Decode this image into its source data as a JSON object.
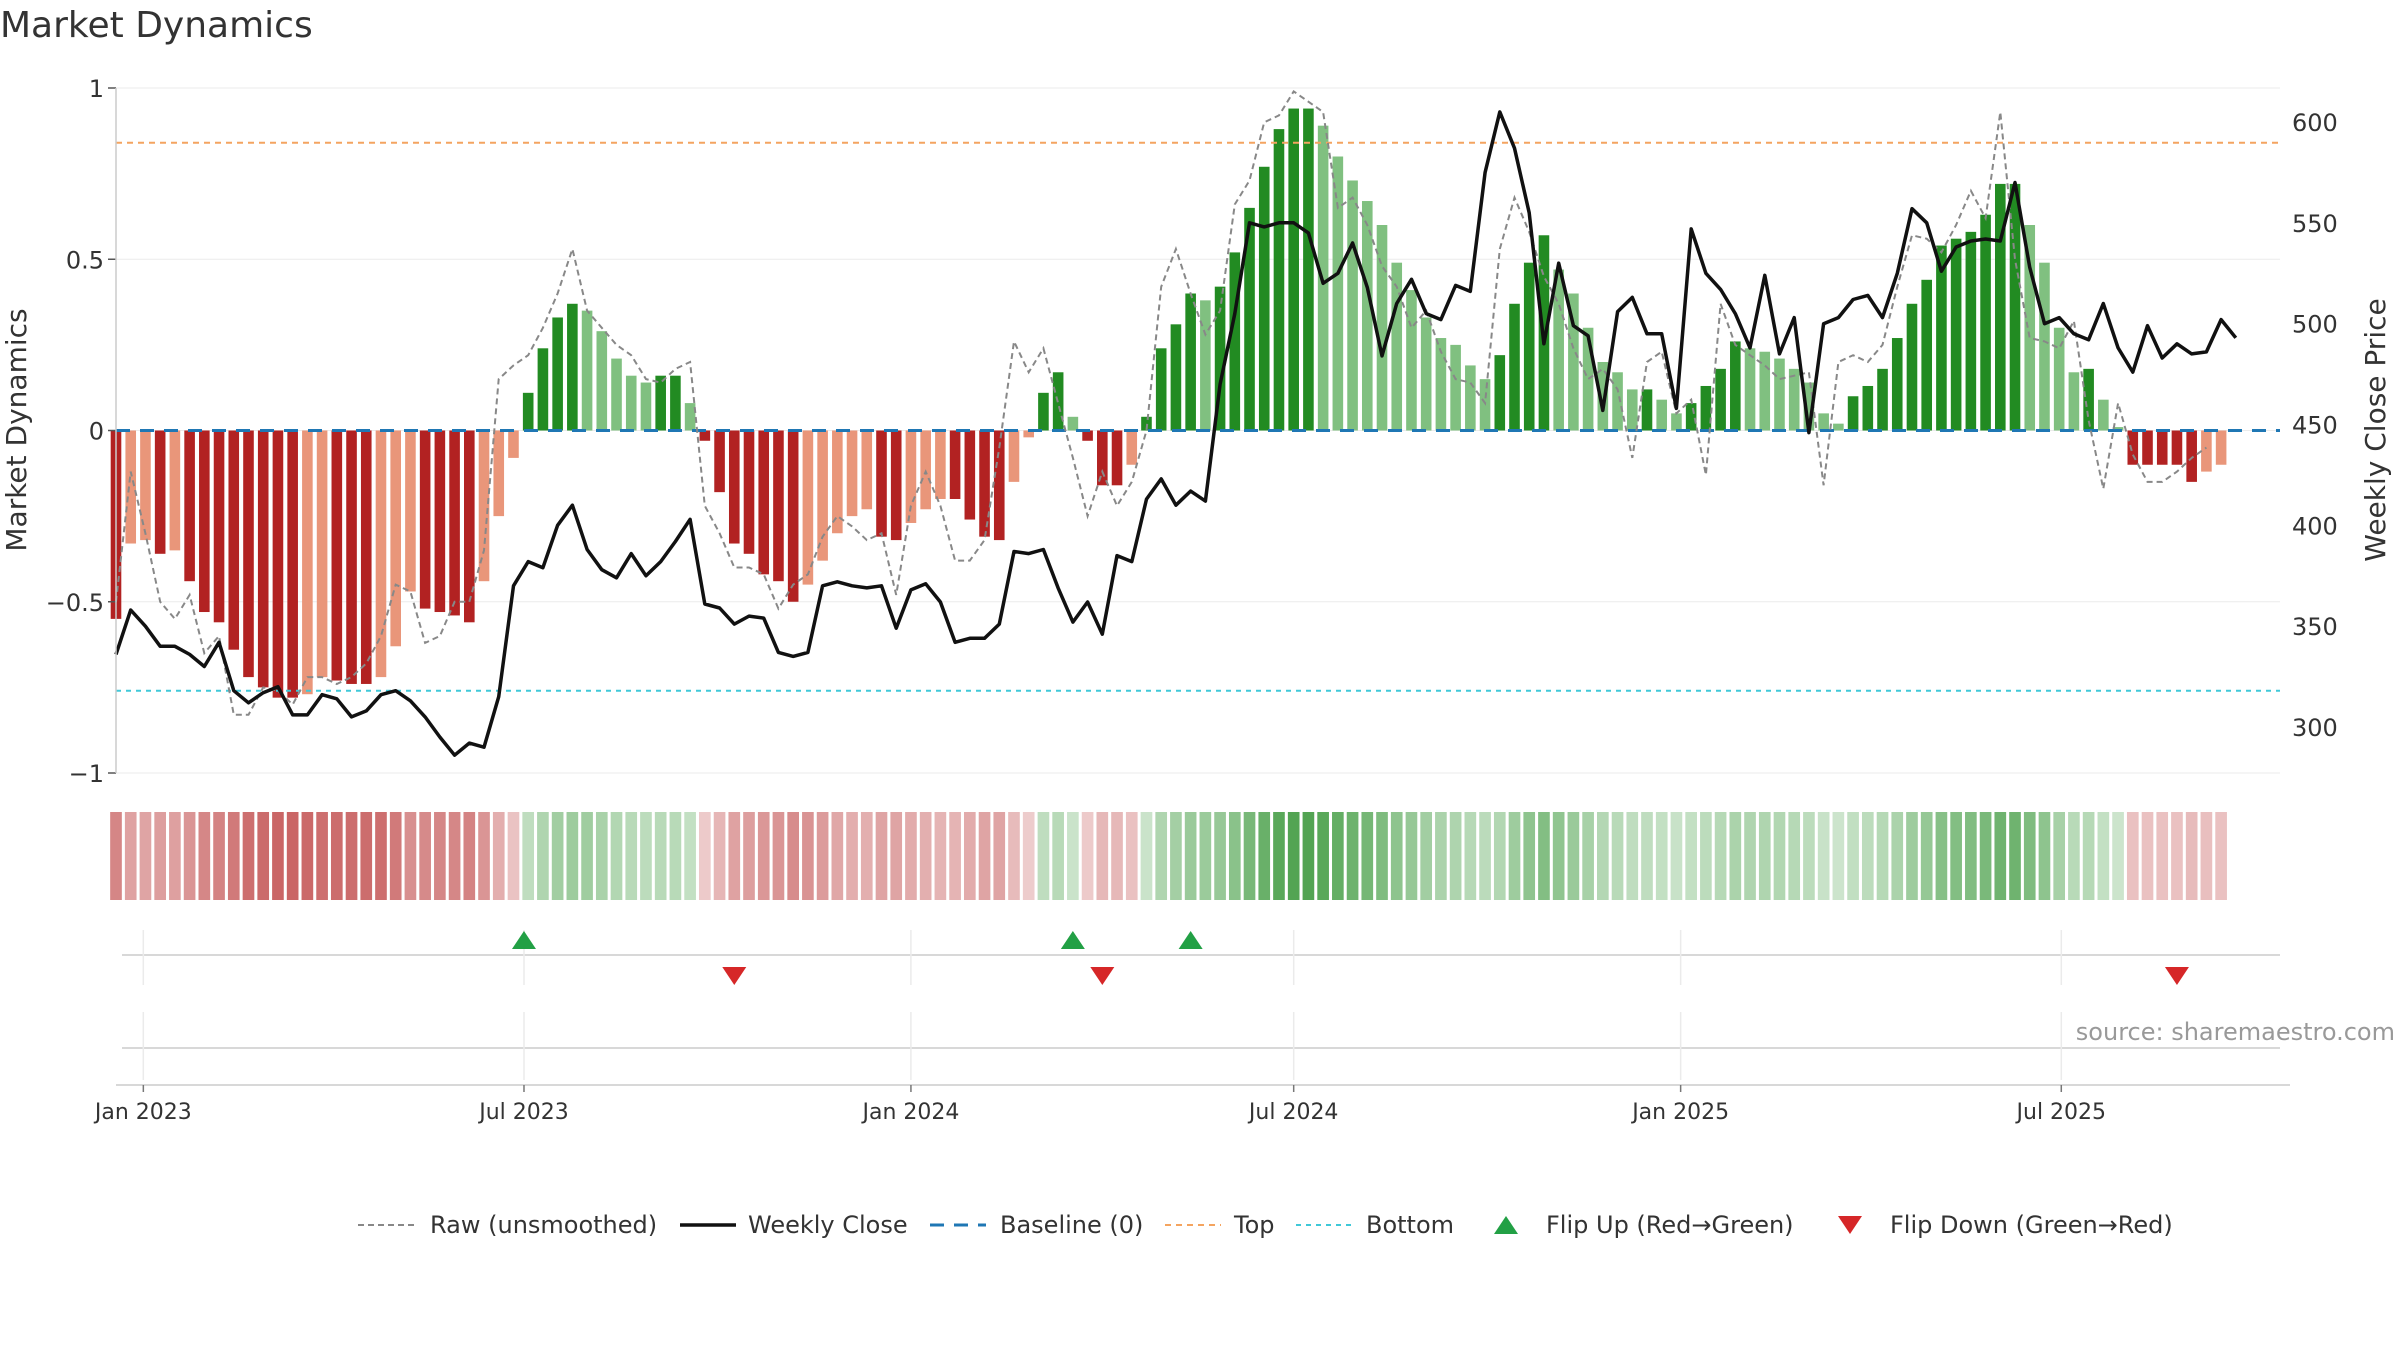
{
  "chart_data": {
    "type": "bar",
    "title": "Market Dynamics",
    "ylabel_left": "Market Dynamics",
    "ylabel_right": "Weekly Close Price",
    "source": "source: sharemaestro.com",
    "ylim_left": [
      -1,
      1
    ],
    "ylim_right": [
      270,
      618
    ],
    "yticks_left": [
      {
        "v": 1,
        "t": "1"
      },
      {
        "v": 0.5,
        "t": "0.5"
      },
      {
        "v": 0,
        "t": "0"
      },
      {
        "v": -0.5,
        "t": "−0.5"
      },
      {
        "v": -1,
        "t": "−1"
      }
    ],
    "yticks_right": [
      {
        "v": 600,
        "t": "600"
      },
      {
        "v": 550,
        "t": "550"
      },
      {
        "v": 500,
        "t": "500"
      },
      {
        "v": 450,
        "t": "450"
      },
      {
        "v": 400,
        "t": "400"
      },
      {
        "v": 350,
        "t": "350"
      },
      {
        "v": 300,
        "t": "300"
      }
    ],
    "xlim": [
      "2022-12-19",
      "2025-10-13"
    ],
    "x_ticks": [
      {
        "date": "2023-01-01",
        "label": "Jan 2023"
      },
      {
        "date": "2023-07-01",
        "label": "Jul 2023"
      },
      {
        "date": "2024-01-01",
        "label": "Jan 2024"
      },
      {
        "date": "2024-07-01",
        "label": "Jul 2024"
      },
      {
        "date": "2025-01-01",
        "label": "Jan 2025"
      },
      {
        "date": "2025-07-01",
        "label": "Jul 2025"
      }
    ],
    "top_threshold": 0.84,
    "bottom_threshold": -0.76,
    "baseline": 0,
    "start_week": "2022-12-19",
    "dynamics": [
      -0.55,
      -0.33,
      -0.32,
      -0.36,
      -0.35,
      -0.44,
      -0.53,
      -0.56,
      -0.64,
      -0.72,
      -0.75,
      -0.78,
      -0.78,
      -0.77,
      -0.72,
      -0.73,
      -0.74,
      -0.74,
      -0.72,
      -0.63,
      -0.47,
      -0.52,
      -0.53,
      -0.54,
      -0.56,
      -0.44,
      -0.25,
      -0.08,
      0.11,
      0.24,
      0.33,
      0.37,
      0.35,
      0.29,
      0.21,
      0.16,
      0.14,
      0.16,
      0.16,
      0.08,
      -0.03,
      -0.18,
      -0.33,
      -0.36,
      -0.42,
      -0.44,
      -0.5,
      -0.45,
      -0.38,
      -0.3,
      -0.25,
      -0.23,
      -0.31,
      -0.32,
      -0.27,
      -0.23,
      -0.2,
      -0.2,
      -0.26,
      -0.31,
      -0.32,
      -0.15,
      -0.02,
      0.11,
      0.17,
      0.04,
      -0.03,
      -0.16,
      -0.16,
      -0.1,
      0.04,
      0.24,
      0.31,
      0.4,
      0.38,
      0.42,
      0.52,
      0.65,
      0.77,
      0.88,
      0.94,
      0.94,
      0.89,
      0.8,
      0.73,
      0.67,
      0.6,
      0.49,
      0.41,
      0.33,
      0.27,
      0.25,
      0.19,
      0.15,
      0.22,
      0.37,
      0.49,
      0.57,
      0.47,
      0.4,
      0.3,
      0.2,
      0.17,
      0.12,
      0.12,
      0.09,
      0.05,
      0.08,
      0.13,
      0.18,
      0.26,
      0.24,
      0.23,
      0.21,
      0.18,
      0.14,
      0.05,
      0.02,
      0.1,
      0.13,
      0.18,
      0.27,
      0.37,
      0.44,
      0.54,
      0.56,
      0.58,
      0.63,
      0.72,
      0.72,
      0.6,
      0.49,
      0.3,
      0.17,
      0.18,
      0.09,
      0.01,
      -0.1,
      -0.1,
      -0.1,
      -0.1,
      -0.15,
      -0.12,
      -0.1
    ],
    "raw": [
      -0.5,
      -0.12,
      -0.3,
      -0.5,
      -0.55,
      -0.48,
      -0.65,
      -0.6,
      -0.83,
      -0.83,
      -0.75,
      -0.76,
      -0.8,
      -0.72,
      -0.72,
      -0.74,
      -0.72,
      -0.68,
      -0.6,
      -0.45,
      -0.47,
      -0.62,
      -0.6,
      -0.5,
      -0.5,
      -0.35,
      0.15,
      0.19,
      0.22,
      0.3,
      0.4,
      0.53,
      0.35,
      0.3,
      0.25,
      0.22,
      0.15,
      0.14,
      0.18,
      0.2,
      -0.22,
      -0.3,
      -0.4,
      -0.4,
      -0.42,
      -0.52,
      -0.45,
      -0.42,
      -0.31,
      -0.25,
      -0.28,
      -0.32,
      -0.3,
      -0.48,
      -0.22,
      -0.12,
      -0.22,
      -0.38,
      -0.38,
      -0.32,
      -0.05,
      0.26,
      0.17,
      0.24,
      0.08,
      -0.08,
      -0.25,
      -0.12,
      -0.22,
      -0.15,
      0.0,
      0.42,
      0.53,
      0.4,
      0.28,
      0.35,
      0.66,
      0.73,
      0.9,
      0.92,
      0.99,
      0.96,
      0.93,
      0.65,
      0.68,
      0.6,
      0.48,
      0.42,
      0.3,
      0.35,
      0.23,
      0.15,
      0.14,
      0.08,
      0.53,
      0.68,
      0.58,
      0.45,
      0.37,
      0.24,
      0.15,
      0.18,
      0.12,
      -0.08,
      0.2,
      0.23,
      0.05,
      0.09,
      -0.13,
      0.37,
      0.25,
      0.22,
      0.19,
      0.15,
      0.16,
      0.17,
      -0.16,
      0.2,
      0.22,
      0.2,
      0.25,
      0.42,
      0.57,
      0.56,
      0.52,
      0.6,
      0.7,
      0.62,
      0.93,
      0.5,
      0.27,
      0.26,
      0.24,
      0.32,
      0.03,
      -0.17,
      0.08,
      -0.07,
      -0.15,
      -0.15,
      -0.12,
      -0.08,
      -0.05
    ],
    "price": [
      336,
      358,
      350,
      340,
      340,
      336,
      330,
      342,
      318,
      312,
      317,
      320,
      306,
      306,
      316,
      314,
      305,
      308,
      316,
      318,
      313,
      305,
      295,
      286,
      292,
      290,
      315,
      370,
      382,
      379,
      400,
      410,
      388,
      378,
      374,
      386,
      375,
      382,
      392,
      403,
      361,
      359,
      351,
      355,
      354,
      337,
      335,
      337,
      370,
      372,
      370,
      369,
      370,
      349,
      368,
      371,
      362,
      342,
      344,
      344,
      351,
      387,
      386,
      388,
      369,
      352,
      362,
      346,
      385,
      382,
      413,
      423,
      410,
      417,
      412,
      470,
      505,
      550,
      548,
      550,
      550,
      545,
      520,
      525,
      540,
      518,
      484,
      510,
      522,
      505,
      502,
      519,
      516,
      575,
      605,
      587,
      555,
      490,
      530,
      499,
      494,
      457,
      506,
      513,
      495,
      495,
      458,
      547,
      525,
      517,
      505,
      488,
      524,
      485,
      503,
      446,
      500,
      503,
      512,
      514,
      503,
      525,
      557,
      550,
      526,
      538,
      541,
      542,
      541,
      570,
      528,
      500,
      503,
      495,
      492,
      510,
      488,
      476,
      499,
      483,
      490,
      485,
      486,
      502,
      493
    ],
    "markers": [
      {
        "date": "2023-07-01",
        "type": "Flip Up"
      },
      {
        "date": "2023-10-09",
        "type": "Flip Down"
      },
      {
        "date": "2024-03-18",
        "type": "Flip Up"
      },
      {
        "date": "2024-04-01",
        "type": "Flip Down"
      },
      {
        "date": "2024-05-13",
        "type": "Flip Up"
      },
      {
        "date": "2025-08-25",
        "type": "Flip Down"
      }
    ],
    "legend": [
      {
        "key": "raw",
        "label": "Raw (unsmoothed)"
      },
      {
        "key": "close",
        "label": "Weekly Close"
      },
      {
        "key": "base",
        "label": "Baseline (0)"
      },
      {
        "key": "top",
        "label": "Top"
      },
      {
        "key": "bottom",
        "label": "Bottom"
      },
      {
        "key": "up",
        "label": "Flip Up (Red→Green)"
      },
      {
        "key": "down",
        "label": "Flip Down (Green→Red)"
      }
    ],
    "legend_placement": "bottom-center",
    "colors": {
      "pos_strong": "#228b22",
      "pos_weak": "#80c080",
      "neg_strong": "#b22222",
      "neg_weak": "#e9967a",
      "price": "#111111",
      "raw": "#888888",
      "baseline": "#1f77b4",
      "top": "#f4a460",
      "bottom": "#40c8d8",
      "flip_up": "#22a045",
      "flip_down": "#d62728"
    },
    "grid": true
  }
}
